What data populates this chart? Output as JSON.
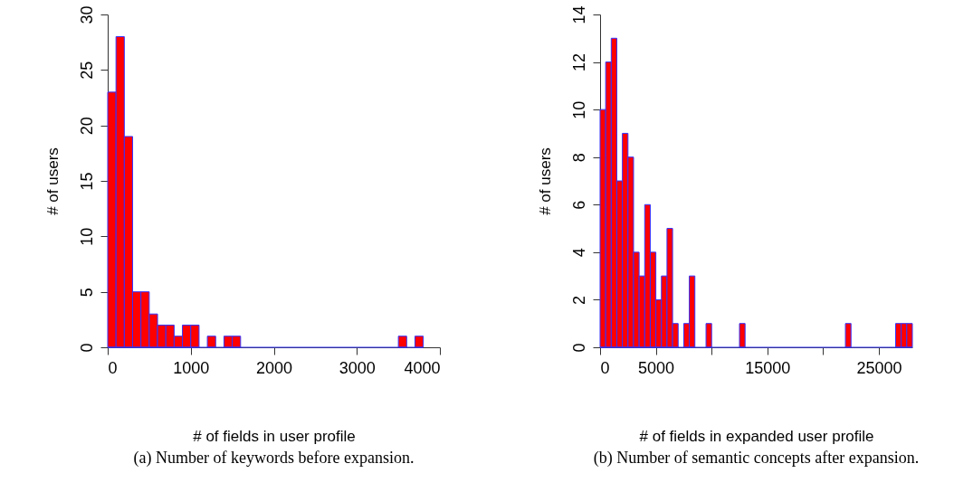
{
  "chart_data": [
    {
      "type": "histogram",
      "xlabel": "# of fields in user profile",
      "ylabel": "# of users",
      "color": "#ff0000",
      "bins": [
        0,
        100,
        200,
        300,
        400,
        500,
        600,
        700,
        800,
        900,
        1000,
        1100,
        1200,
        1300,
        1400,
        1500,
        1600,
        1700,
        1800,
        1900,
        2000,
        2100,
        2200,
        2300,
        2400,
        2500,
        2600,
        2700,
        2800,
        2900,
        3000,
        3100,
        3200,
        3300,
        3400,
        3500,
        3600,
        3700,
        3800
      ],
      "values": [
        23,
        28,
        19,
        5,
        5,
        3,
        2,
        2,
        1,
        2,
        2,
        0,
        1,
        0,
        1,
        1,
        0,
        0,
        0,
        0,
        0,
        0,
        0,
        0,
        0,
        0,
        0,
        0,
        0,
        0,
        0,
        0,
        0,
        0,
        0,
        1,
        0,
        1
      ],
      "xlim": [
        0,
        4000
      ],
      "xticks": [
        0,
        1000,
        2000,
        3000,
        4000
      ],
      "ylim": [
        0,
        30
      ],
      "yticks": [
        0,
        5,
        10,
        15,
        20,
        25,
        30
      ],
      "grid": false,
      "annotations": [
        "(a) Number of keywords before expansion."
      ]
    },
    {
      "type": "histogram",
      "xlabel": "# of fields in expanded user profile",
      "ylabel": "# of users",
      "color": "#ff0000",
      "bins": [
        0,
        500,
        1000,
        1500,
        2000,
        2500,
        3000,
        3500,
        4000,
        4500,
        5000,
        5500,
        6000,
        6500,
        7000,
        7500,
        8000,
        8500,
        9000,
        9500,
        10000,
        10500,
        11000,
        11500,
        12000,
        12500,
        13000,
        13500,
        14000,
        14500,
        15000,
        15500,
        16000,
        16500,
        17000,
        17500,
        18000,
        18500,
        19000,
        19500,
        20000,
        20500,
        21000,
        21500,
        22000,
        22500,
        23000,
        23500,
        24000,
        24500,
        25000,
        25500,
        26000,
        26500,
        27000,
        27500,
        28000
      ],
      "values": [
        10,
        12,
        13,
        7,
        9,
        8,
        4,
        3,
        6,
        4,
        2,
        3,
        5,
        1,
        0,
        1,
        3,
        0,
        0,
        1,
        0,
        0,
        0,
        0,
        0,
        1,
        0,
        0,
        0,
        0,
        0,
        0,
        0,
        0,
        0,
        0,
        0,
        0,
        0,
        0,
        0,
        0,
        0,
        0,
        1,
        0,
        0,
        0,
        0,
        0,
        0,
        0,
        0,
        1,
        1,
        1
      ],
      "xlim": [
        0,
        28000
      ],
      "xticks": [
        0,
        5000,
        {
          "value": 10000,
          "label": null
        },
        15000,
        {
          "value": 20000,
          "label": null
        },
        25000
      ],
      "ylim": [
        0,
        14
      ],
      "yticks": [
        0,
        2,
        4,
        6,
        8,
        10,
        12,
        14
      ],
      "grid": false,
      "annotations": [
        "(b) Number of semantic concepts after expansion."
      ]
    }
  ]
}
